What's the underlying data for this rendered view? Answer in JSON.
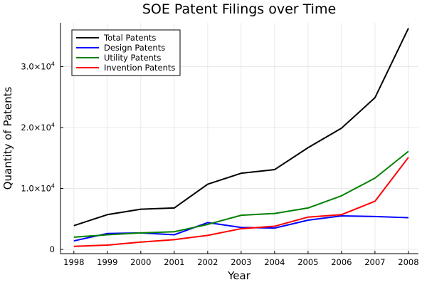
{
  "chart_data": {
    "type": "line",
    "title": "SOE Patent Filings over Time",
    "xlabel": "Year",
    "ylabel": "Quantity of Patents",
    "x": [
      1998,
      1999,
      2000,
      2001,
      2002,
      2003,
      2004,
      2005,
      2006,
      2007,
      2008
    ],
    "xlim": [
      1997.6,
      2008.3
    ],
    "ylim": [
      -700,
      37200
    ],
    "yticks": [
      {
        "value": 0,
        "mantissa": "0",
        "exp": ""
      },
      {
        "value": 10000,
        "mantissa": "1.0×10",
        "exp": "4"
      },
      {
        "value": 20000,
        "mantissa": "2.0×10",
        "exp": "4"
      },
      {
        "value": 30000,
        "mantissa": "3.0×10",
        "exp": "4"
      }
    ],
    "grid": true,
    "legend_position": "top-left",
    "series": [
      {
        "name": "Total Patents",
        "color": "#000000",
        "values": [
          3900,
          5700,
          6600,
          6800,
          10700,
          12500,
          13100,
          16700,
          19900,
          24900,
          36300
        ]
      },
      {
        "name": "Design Patents",
        "color": "#0000ff",
        "values": [
          1400,
          2600,
          2700,
          2400,
          4400,
          3600,
          3500,
          4800,
          5500,
          5400,
          5200
        ]
      },
      {
        "name": "Utility Patents",
        "color": "#008000",
        "values": [
          2000,
          2400,
          2700,
          2900,
          4100,
          5600,
          5900,
          6800,
          8800,
          11700,
          16100
        ]
      },
      {
        "name": "Invention Patents",
        "color": "#ff0000",
        "values": [
          500,
          700,
          1200,
          1600,
          2300,
          3400,
          3800,
          5300,
          5700,
          7900,
          15100
        ]
      }
    ]
  }
}
